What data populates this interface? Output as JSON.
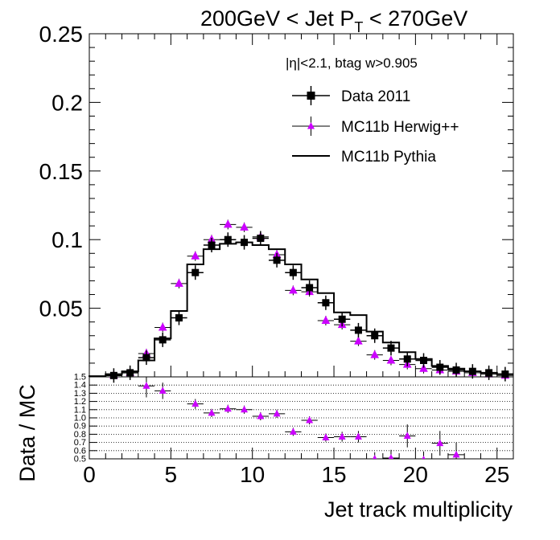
{
  "chart_data": [
    {
      "type": "line",
      "title": "200GeV < Jet P",
      "title_sub": "T",
      "title_tail": " < 270GeV",
      "annotation": "|η|<2.1, btag w>0.905",
      "ylim": [
        0,
        0.25
      ],
      "xlim": [
        0,
        26
      ],
      "y_ticks": [
        {
          "v": 0.05,
          "label": "0.05"
        },
        {
          "v": 0.1,
          "label": "0.1"
        },
        {
          "v": 0.15,
          "label": "0.15"
        },
        {
          "v": 0.2,
          "label": "0.2"
        },
        {
          "v": 0.25,
          "label": "0.25"
        }
      ],
      "series": [
        {
          "name": "Data 2011",
          "color": "#000000",
          "marker": "square",
          "x": [
            1.5,
            2.5,
            3.5,
            4.5,
            5.5,
            6.5,
            7.5,
            8.5,
            9.5,
            10.5,
            11.5,
            12.5,
            13.5,
            14.5,
            15.5,
            16.5,
            17.5,
            18.5,
            19.5,
            20.5,
            21.5,
            22.5,
            23.5,
            24.5,
            25.5
          ],
          "values": [
            0.001,
            0.003,
            0.014,
            0.027,
            0.043,
            0.076,
            0.096,
            0.1,
            0.098,
            0.101,
            0.085,
            0.076,
            0.065,
            0.054,
            0.042,
            0.034,
            0.03,
            0.021,
            0.013,
            0.012,
            0.007,
            0.005,
            0.004,
            0.003,
            0.002
          ]
        },
        {
          "name": "MC11b Herwig++",
          "color": "#cc00ff",
          "marker": "triangle",
          "x": [
            1.5,
            2.5,
            3.5,
            4.5,
            5.5,
            6.5,
            7.5,
            8.5,
            9.5,
            10.5,
            11.5,
            12.5,
            13.5,
            14.5,
            15.5,
            16.5,
            17.5,
            18.5,
            19.5,
            20.5,
            21.5,
            22.5,
            23.5,
            24.5,
            25.5
          ],
          "values": [
            0.001,
            0.003,
            0.017,
            0.036,
            0.068,
            0.088,
            0.1,
            0.111,
            0.109,
            0.102,
            0.089,
            0.063,
            0.062,
            0.041,
            0.038,
            0.026,
            0.016,
            0.012,
            0.009,
            0.006,
            0.005,
            0.004,
            0.003,
            0.002,
            0.001
          ]
        },
        {
          "name": "MC11b Pythia",
          "color": "#000000",
          "marker": "step",
          "bin_edges": [
            0,
            1,
            2,
            3,
            4,
            5,
            6,
            7,
            8,
            9,
            10,
            11,
            12,
            13,
            14,
            15,
            16,
            17,
            18,
            19,
            20,
            21,
            22,
            23,
            24,
            25,
            26
          ],
          "values": [
            0.0005,
            0.002,
            0.004,
            0.012,
            0.028,
            0.048,
            0.082,
            0.093,
            0.097,
            0.098,
            0.096,
            0.093,
            0.082,
            0.071,
            0.061,
            0.047,
            0.045,
            0.033,
            0.025,
            0.018,
            0.013,
            0.008,
            0.006,
            0.004,
            0.003,
            0.002
          ]
        }
      ]
    },
    {
      "type": "scatter",
      "ylabel": "Data / MC",
      "xlabel": "Jet track multiplicity",
      "ylim": [
        0.5,
        1.5
      ],
      "xlim": [
        0,
        26
      ],
      "grid": true,
      "y_ticks": [
        {
          "v": 0.5,
          "label": "0.5"
        },
        {
          "v": 0.6,
          "label": "0.6"
        },
        {
          "v": 0.7,
          "label": "0.7"
        },
        {
          "v": 0.8,
          "label": "0.8"
        },
        {
          "v": 0.9,
          "label": "0.9"
        },
        {
          "v": 1.0,
          "label": "1.0"
        },
        {
          "v": 1.1,
          "label": "1.1"
        },
        {
          "v": 1.2,
          "label": "1.2"
        },
        {
          "v": 1.3,
          "label": "1.3"
        },
        {
          "v": 1.4,
          "label": "1.4"
        },
        {
          "v": 1.5,
          "label": "1.5"
        }
      ],
      "x_ticks": [
        {
          "v": 0,
          "label": "0"
        },
        {
          "v": 5,
          "label": "5"
        },
        {
          "v": 10,
          "label": "10"
        },
        {
          "v": 15,
          "label": "15"
        },
        {
          "v": 20,
          "label": "20"
        },
        {
          "v": 25,
          "label": "25"
        }
      ],
      "series": [
        {
          "color": "#cc00ff",
          "marker": "triangle",
          "x": [
            3.5,
            4.5,
            6.5,
            7.5,
            8.5,
            9.5,
            10.5,
            11.5,
            12.5,
            13.5,
            14.5,
            15.5,
            16.5,
            17.5,
            18.5,
            19.5,
            20.5,
            21.5,
            22.5
          ],
          "values": [
            1.39,
            1.33,
            1.17,
            1.06,
            1.11,
            1.1,
            1.02,
            1.05,
            0.83,
            0.97,
            0.76,
            0.77,
            0.77,
            0.5,
            0.51,
            0.78,
            0.49,
            0.69,
            0.55
          ],
          "errors": [
            0.14,
            0.1,
            0.06,
            0.05,
            0.05,
            0.05,
            0.05,
            0.05,
            0.05,
            0.05,
            0.05,
            0.06,
            0.07,
            0.08,
            0.1,
            0.14,
            0.1,
            0.15,
            0.15
          ]
        }
      ]
    }
  ]
}
